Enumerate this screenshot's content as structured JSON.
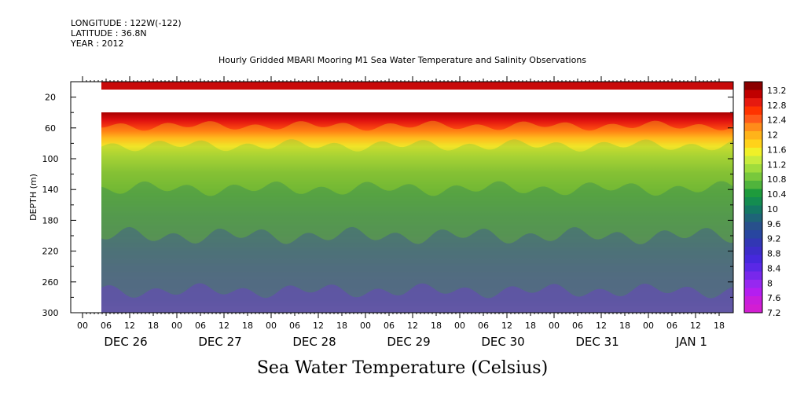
{
  "header": {
    "longitude": "LONGITUDE : 122W(-122)",
    "latitude": "LATITUDE : 36.8N",
    "year": "YEAR : 2012"
  },
  "chart_data": {
    "type": "heatmap",
    "title": "Hourly Gridded MBARI Mooring M1 Sea Water Temperature and Salinity Observations",
    "xlabel": "Sea Water Temperature (Celsius)",
    "ylabel": "DEPTH (m)",
    "x_hour_ticks": [
      "00",
      "06",
      "12",
      "18",
      "00",
      "06",
      "12",
      "18",
      "00",
      "06",
      "12",
      "18",
      "00",
      "06",
      "12",
      "18",
      "00",
      "06",
      "12",
      "18",
      "00",
      "06",
      "12",
      "18",
      "00",
      "06",
      "12",
      "18"
    ],
    "x_day_labels": [
      "DEC 26",
      "DEC 27",
      "DEC 28",
      "DEC 29",
      "DEC 30",
      "DEC 31",
      "JAN  1"
    ],
    "ylim": [
      300,
      0
    ],
    "y_ticks": [
      "20",
      "60",
      "100",
      "140",
      "180",
      "220",
      "260",
      "300"
    ],
    "colorbar": {
      "labels": [
        "13.2",
        "12.8",
        "12.4",
        "12",
        "11.6",
        "11.2",
        "10.8",
        "10.4",
        "10",
        "9.6",
        "9.2",
        "8.8",
        "8.4",
        "8",
        "7.6",
        "7.2"
      ],
      "colors": [
        "#8b0000",
        "#c00000",
        "#e61a0f",
        "#ff3300",
        "#ff5a1a",
        "#ff8c1a",
        "#ffb31a",
        "#ffd21a",
        "#f0f028",
        "#c8eb3c",
        "#a0dc3c",
        "#78c83c",
        "#50b43c",
        "#1e9b3c",
        "#148c50",
        "#147864",
        "#1e6478",
        "#28508c",
        "#2846a0",
        "#3237b4",
        "#3c2dc8",
        "#4628dc",
        "#5a28e6",
        "#7828eb",
        "#9628f0",
        "#b41ef0",
        "#c81edc",
        "#d21ed2"
      ]
    }
  }
}
